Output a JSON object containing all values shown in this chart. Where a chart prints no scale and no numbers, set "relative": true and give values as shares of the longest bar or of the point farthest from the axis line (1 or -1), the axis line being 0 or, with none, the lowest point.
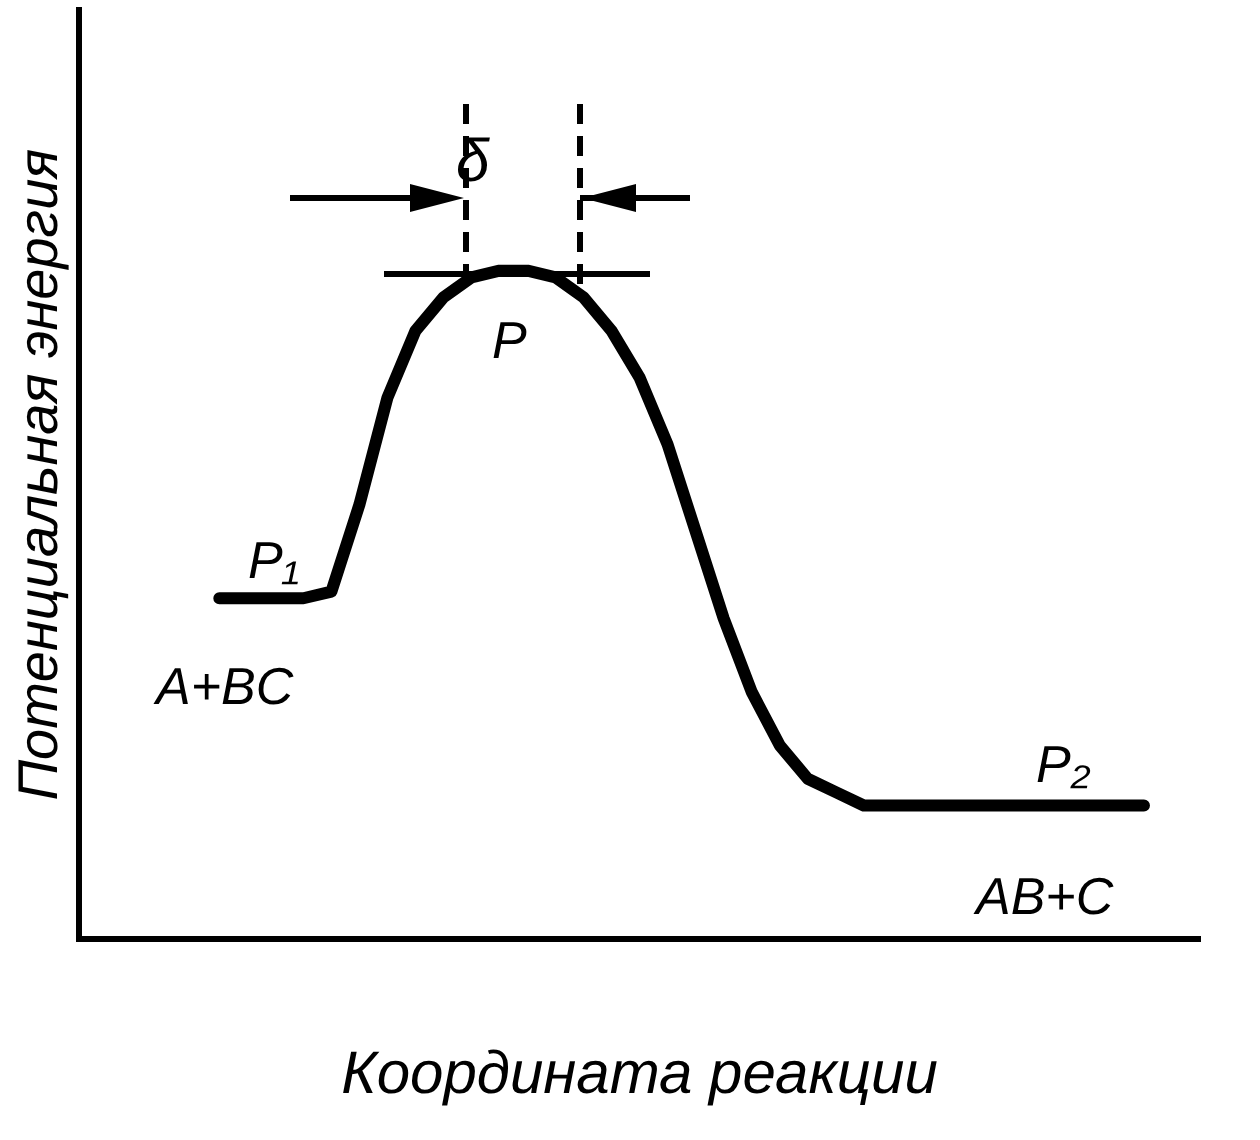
{
  "chart_data": {
    "type": "line",
    "relative": true,
    "xlabel": "Координата реакции",
    "ylabel": "Потенциальная энергия",
    "categories": [
      null,
      null,
      null,
      null,
      null,
      null,
      null,
      null,
      null,
      null,
      null,
      null,
      null,
      null,
      null,
      null,
      null,
      null,
      null,
      null,
      null,
      null,
      null,
      null,
      null,
      null,
      null,
      null,
      null,
      null,
      null,
      null,
      null,
      null,
      null,
      null,
      null,
      null,
      null,
      null,
      null
    ],
    "series": [
      {
        "color": "#000000",
        "values": [
          null,
          null,
          null,
          null,
          null,
          0.51,
          0.51,
          0.51,
          0.51,
          0.52,
          0.65,
          0.81,
          0.91,
          0.96,
          0.99,
          1,
          1,
          0.99,
          0.96,
          0.91,
          0.84,
          0.74,
          0.61,
          0.48,
          0.37,
          0.29,
          0.24,
          0.22,
          0.2,
          0.2,
          0.2,
          0.2,
          0.2,
          0.2,
          0.2,
          0.2,
          0.2,
          0.2,
          0.2,
          null,
          null
        ]
      }
    ],
    "annotations": [
      "P₁",
      "A+BC",
      "P",
      "δ",
      "P₂",
      "AB+C"
    ],
    "grid": false,
    "legend": false,
    "marker": "none",
    "line_style": "solid"
  }
}
